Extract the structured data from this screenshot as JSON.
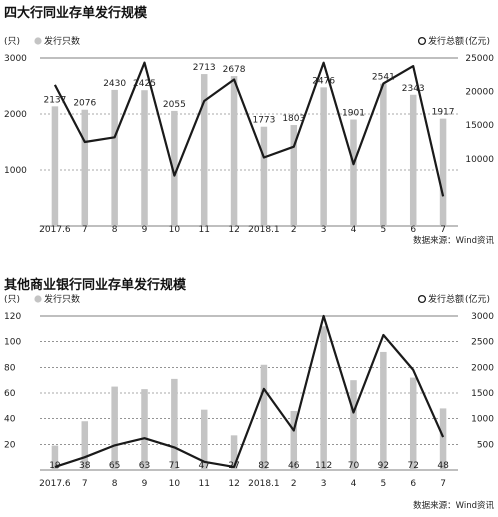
{
  "chart_data": [
    {
      "type": "bar+line",
      "title": "四大行同业存单发行规模",
      "left_unit": "(只)",
      "bar_legend": "发行只数",
      "line_legend": "发行总额",
      "right_unit": "(亿元)",
      "source": "数据来源：Wind资讯",
      "categories": [
        "2017.6",
        "7",
        "8",
        "9",
        "10",
        "11",
        "12",
        "2018.1",
        "2",
        "3",
        "4",
        "5",
        "6",
        "7"
      ],
      "bar_values": [
        2137,
        2076,
        2430,
        2425,
        2055,
        2713,
        2678,
        1773,
        1803,
        2476,
        1901,
        2541,
        2343,
        1917
      ],
      "bar_labels": [
        "2137",
        "2076",
        "2430",
        "2425",
        "2055",
        "2713",
        "2678",
        "1773",
        "1803",
        "2476",
        "1901",
        "2541",
        "2343",
        "1917"
      ],
      "line_values": [
        21000,
        12500,
        13200,
        24300,
        7500,
        18600,
        21800,
        10200,
        11800,
        24300,
        9200,
        21200,
        23800,
        4400
      ],
      "left_axis": {
        "min": 0,
        "max": 3000,
        "ticks": [
          1000,
          2000,
          3000
        ],
        "tick_labels": [
          "1000",
          "2000",
          "3000"
        ]
      },
      "right_axis": {
        "min": 0,
        "max": 25000,
        "ticks": [
          10000,
          15000,
          20000,
          25000
        ],
        "tick_labels": [
          "10000",
          "15000",
          "20000",
          "25000"
        ]
      },
      "colors": {
        "bar": "#c4c4c4",
        "line": "#1a1a1a"
      }
    },
    {
      "type": "bar+line",
      "title": "其他商业银行同业存单发行规模",
      "left_unit": "(只)",
      "bar_legend": "发行只数",
      "line_legend": "发行总额",
      "right_unit": "(亿元)",
      "source": "数据来源：Wind资讯",
      "categories": [
        "2017.6",
        "7",
        "8",
        "9",
        "10",
        "11",
        "12",
        "2018.1",
        "2",
        "3",
        "4",
        "5",
        "6",
        "7"
      ],
      "bar_values": [
        19,
        38,
        65,
        63,
        71,
        47,
        27,
        82,
        46,
        112,
        70,
        92,
        72,
        48
      ],
      "bar_labels": [
        "19",
        "38",
        "65",
        "63",
        "71",
        "47",
        "27",
        "82",
        "46",
        "112",
        "70",
        "92",
        "72",
        "48"
      ],
      "line_values": [
        60,
        250,
        480,
        620,
        440,
        160,
        60,
        1580,
        770,
        3000,
        1120,
        2630,
        1950,
        640
      ],
      "left_axis": {
        "min": 0,
        "max": 120,
        "ticks": [
          20,
          40,
          60,
          80,
          100,
          120
        ],
        "tick_labels": [
          "20",
          "40",
          "60",
          "80",
          "100",
          "120"
        ]
      },
      "right_axis": {
        "min": 0,
        "max": 3000,
        "ticks": [
          500,
          1000,
          1500,
          2000,
          2500,
          3000
        ],
        "tick_labels": [
          "500",
          "1000",
          "1500",
          "2000",
          "2500",
          "3000"
        ]
      },
      "colors": {
        "bar": "#c4c4c4",
        "line": "#1a1a1a"
      }
    }
  ]
}
